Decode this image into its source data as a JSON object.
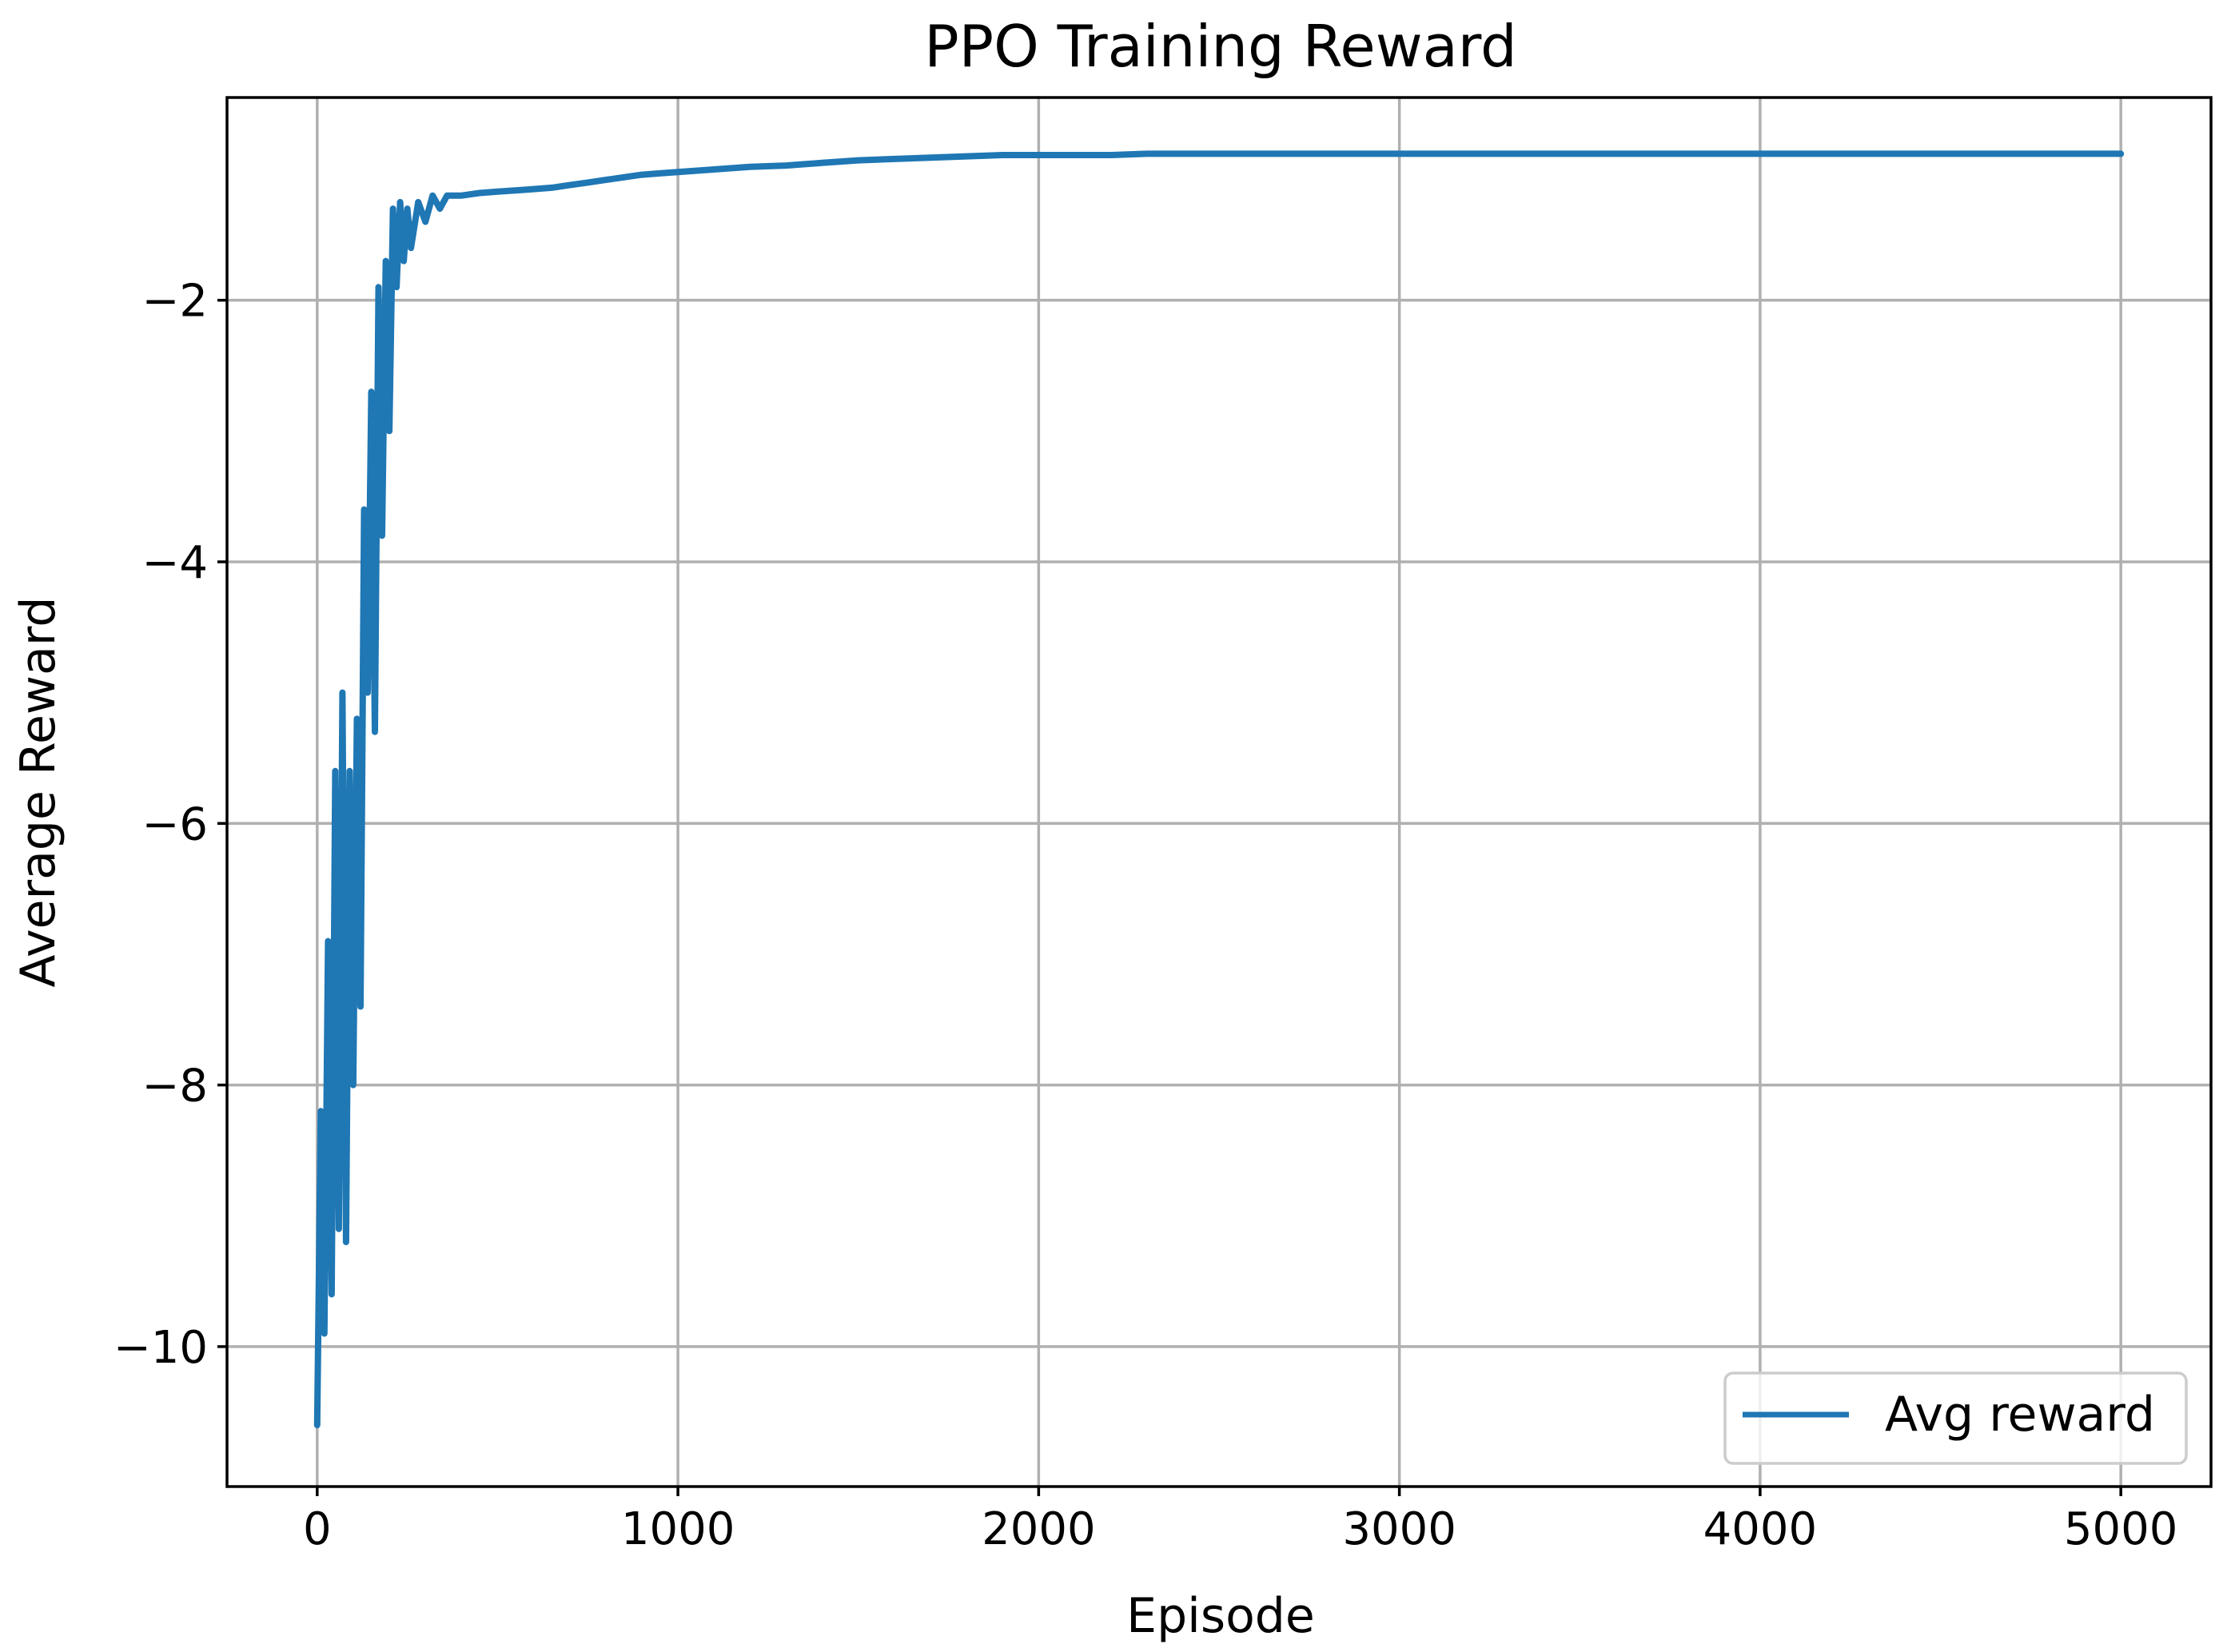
{
  "chart_data": {
    "type": "line",
    "title": "PPO Training Reward",
    "xlabel": "Episode",
    "ylabel": "Average Reward",
    "xlim": [
      -250,
      5250
    ],
    "ylim": [
      -11.07,
      -0.45
    ],
    "xticks": [
      0,
      1000,
      2000,
      3000,
      4000,
      5000
    ],
    "xtick_labels": [
      "0",
      "1000",
      "2000",
      "3000",
      "4000",
      "5000"
    ],
    "yticks": [
      -10,
      -8,
      -6,
      -4,
      -2
    ],
    "ytick_labels": [
      "−10",
      "−8",
      "−6",
      "−4",
      "−2"
    ],
    "grid": true,
    "legend_position": "lower-right",
    "series": [
      {
        "name": "Avg reward",
        "color": "#1f77b4",
        "x": [
          0,
          10,
          20,
          30,
          40,
          50,
          60,
          70,
          80,
          90,
          100,
          110,
          120,
          130,
          140,
          150,
          160,
          170,
          180,
          190,
          200,
          210,
          220,
          230,
          240,
          250,
          260,
          280,
          300,
          320,
          340,
          360,
          400,
          450,
          500,
          550,
          600,
          650,
          700,
          750,
          800,
          850,
          900,
          950,
          1000,
          1100,
          1200,
          1300,
          1400,
          1500,
          1600,
          1700,
          1800,
          1900,
          2000,
          2100,
          2200,
          2300,
          2400,
          2500,
          2600,
          2700,
          2800,
          2900,
          3000,
          3100,
          3200,
          3300,
          3400,
          3500,
          3600,
          3700,
          3800,
          3900,
          4000,
          4100,
          4200,
          4300,
          4400,
          4500,
          4600,
          4700,
          4800,
          4900,
          5000
        ],
        "y": [
          -10.6,
          -8.2,
          -9.9,
          -6.9,
          -9.6,
          -5.6,
          -9.1,
          -5.0,
          -9.2,
          -5.6,
          -8.0,
          -5.2,
          -7.4,
          -3.6,
          -5.0,
          -2.7,
          -5.3,
          -1.9,
          -3.8,
          -1.7,
          -3.0,
          -1.3,
          -1.9,
          -1.25,
          -1.7,
          -1.3,
          -1.6,
          -1.25,
          -1.4,
          -1.2,
          -1.3,
          -1.2,
          -1.2,
          -1.18,
          -1.17,
          -1.16,
          -1.15,
          -1.14,
          -1.12,
          -1.1,
          -1.08,
          -1.06,
          -1.04,
          -1.03,
          -1.02,
          -1.0,
          -0.98,
          -0.97,
          -0.95,
          -0.93,
          -0.92,
          -0.91,
          -0.9,
          -0.89,
          -0.89,
          -0.89,
          -0.89,
          -0.88,
          -0.88,
          -0.88,
          -0.88,
          -0.88,
          -0.88,
          -0.88,
          -0.88,
          -0.88,
          -0.88,
          -0.88,
          -0.88,
          -0.88,
          -0.88,
          -0.88,
          -0.88,
          -0.88,
          -0.88,
          -0.88,
          -0.88,
          -0.88,
          -0.88,
          -0.88,
          -0.88,
          -0.88,
          -0.88,
          -0.88,
          -0.88
        ]
      }
    ]
  }
}
